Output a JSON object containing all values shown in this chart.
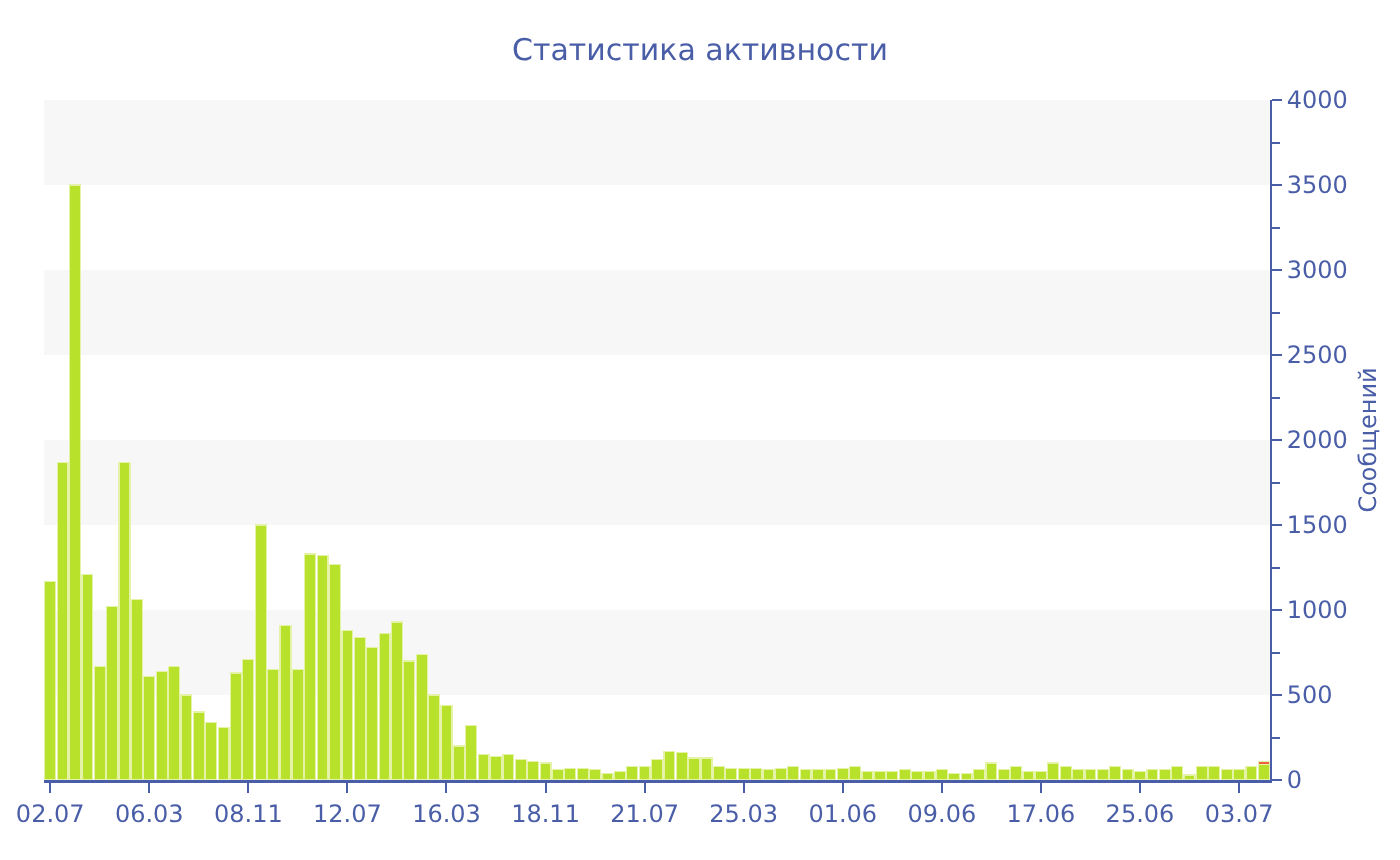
{
  "chart_data": {
    "type": "bar",
    "title": "Статистика активности",
    "ylabel": "Сообщений",
    "categories": [
      "02.07",
      null,
      null,
      null,
      null,
      null,
      null,
      null,
      "06.03",
      null,
      null,
      null,
      null,
      null,
      null,
      null,
      "08.11",
      null,
      null,
      null,
      null,
      null,
      null,
      null,
      "12.07",
      null,
      null,
      null,
      null,
      null,
      null,
      null,
      "16.03",
      null,
      null,
      null,
      null,
      null,
      null,
      null,
      "18.11",
      null,
      null,
      null,
      null,
      null,
      null,
      null,
      "21.07",
      null,
      null,
      null,
      null,
      null,
      null,
      null,
      "25.03",
      null,
      null,
      null,
      null,
      null,
      null,
      null,
      "01.06",
      null,
      null,
      null,
      null,
      null,
      null,
      null,
      "09.06",
      null,
      null,
      null,
      null,
      null,
      null,
      null,
      "17.06",
      null,
      null,
      null,
      null,
      null,
      null,
      null,
      "25.06",
      null,
      null,
      null,
      null,
      null,
      null,
      null,
      "03.07",
      null,
      null
    ],
    "stacked": true,
    "series": [
      {
        "color": "#b8e12c",
        "values": [
          1170,
          1870,
          3500,
          1210,
          670,
          1020,
          1870,
          1060,
          610,
          640,
          670,
          500,
          400,
          340,
          310,
          630,
          710,
          1500,
          650,
          910,
          650,
          1330,
          1320,
          1270,
          880,
          840,
          780,
          860,
          930,
          700,
          740,
          500,
          440,
          200,
          320,
          150,
          140,
          150,
          120,
          110,
          100,
          60,
          70,
          70,
          60,
          40,
          50,
          80,
          80,
          120,
          170,
          160,
          130,
          130,
          80,
          70,
          70,
          70,
          60,
          70,
          80,
          60,
          60,
          60,
          70,
          80,
          50,
          50,
          50,
          60,
          50,
          50,
          60,
          40,
          40,
          60,
          100,
          60,
          80,
          50,
          50,
          100,
          80,
          60,
          60,
          60,
          80,
          60,
          50,
          60,
          60,
          80,
          30,
          80,
          80,
          60,
          60,
          80,
          90
        ]
      },
      {
        "color": "#f0603c",
        "values": [
          null,
          null,
          null,
          null,
          null,
          null,
          null,
          null,
          null,
          null,
          null,
          null,
          null,
          null,
          null,
          null,
          null,
          null,
          null,
          null,
          null,
          null,
          null,
          null,
          null,
          null,
          null,
          null,
          null,
          null,
          null,
          null,
          null,
          null,
          null,
          null,
          null,
          null,
          null,
          null,
          null,
          null,
          null,
          null,
          null,
          null,
          null,
          null,
          null,
          null,
          null,
          null,
          null,
          null,
          null,
          null,
          null,
          null,
          null,
          null,
          null,
          null,
          null,
          null,
          null,
          null,
          null,
          null,
          null,
          null,
          null,
          null,
          null,
          null,
          null,
          null,
          null,
          null,
          null,
          null,
          null,
          null,
          null,
          null,
          null,
          null,
          null,
          null,
          null,
          null,
          null,
          null,
          null,
          null,
          null,
          null,
          null,
          null,
          20
        ]
      }
    ],
    "ylim": [
      0,
      4000
    ],
    "yticks": [
      0,
      500,
      1000,
      1500,
      2000,
      2500,
      3000,
      3500,
      4000
    ],
    "bands": [
      {
        "axis": "y",
        "from": 500,
        "to": 1000,
        "color": "#f7f7f7"
      },
      {
        "axis": "y",
        "from": 1500,
        "to": 2000,
        "color": "#f7f7f7"
      },
      {
        "axis": "y",
        "from": 2500,
        "to": 3000,
        "color": "#f7f7f7"
      },
      {
        "axis": "y",
        "from": 3500,
        "to": 4000,
        "color": "#f7f7f7"
      }
    ],
    "grid": false
  }
}
